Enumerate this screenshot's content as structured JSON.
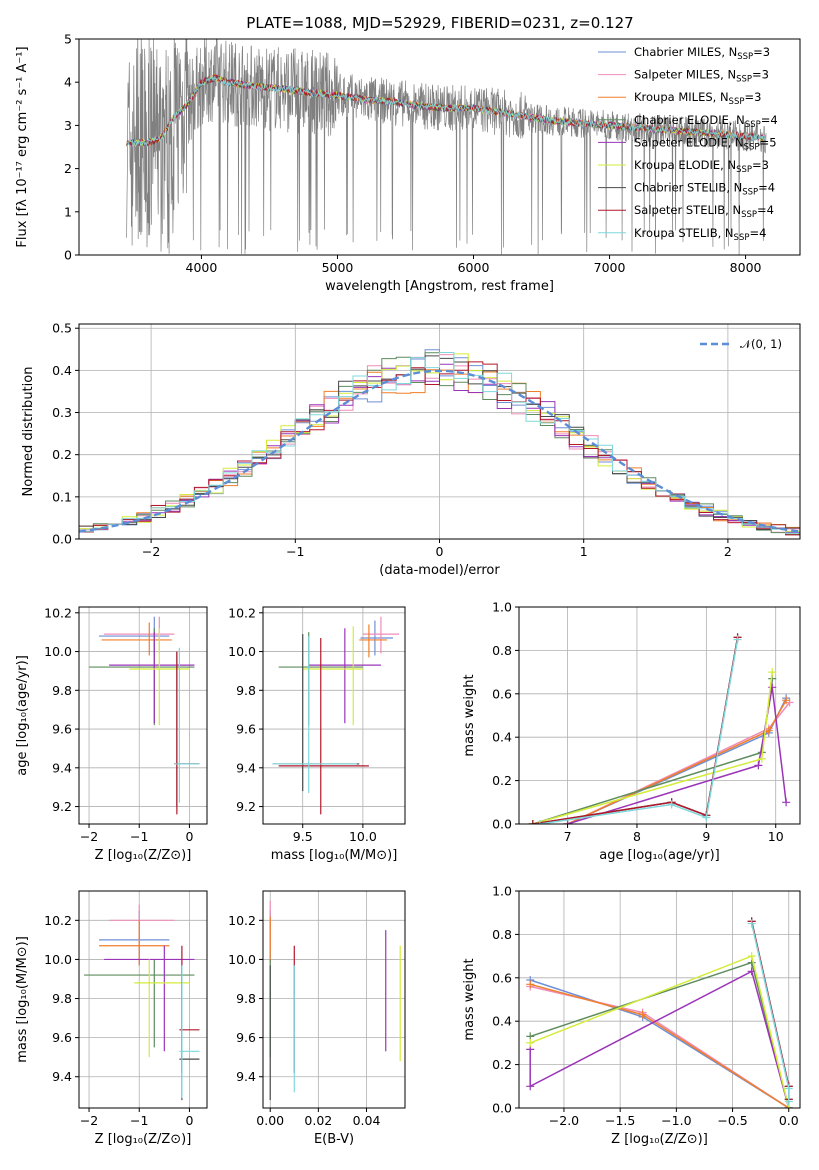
{
  "figure_title": "PLATE=1088, MJD=52929, FIBERID=0231, z=0.127",
  "colors": {
    "Chabrier MILES": "#6f8fd6",
    "Salpeter MILES": "#f08cb8",
    "Kroupa MILES": "#f07f2a",
    "Chabrier ELODIE": "#5e8c5e",
    "Salpeter ELODIE": "#9b35b8",
    "Kroupa ELODIE": "#d4ec3a",
    "Chabrier STELIB": "#4a4a4a",
    "Salpeter STELIB": "#b2182b",
    "Kroupa STELIB": "#7fd8dc",
    "data": "#808080",
    "normal_curve": "#5b8ed6"
  },
  "chart_data": [
    {
      "id": "spectrum",
      "type": "line",
      "title": "PLATE=1088, MJD=52929, FIBERID=0231, z=0.127",
      "xlabel": "wavelength [Angstrom, rest frame]",
      "ylabel": "Flux [fλ 10⁻¹⁷ erg cm⁻² s⁻¹ A⁻¹]",
      "xlim": [
        3100,
        8400
      ],
      "ylim": [
        0,
        5
      ],
      "xticks": [
        "4000",
        "5000",
        "6000",
        "7000",
        "8000"
      ],
      "yticks": [
        "0",
        "1",
        "2",
        "3",
        "4",
        "5"
      ],
      "grid": false,
      "legend_position": "top-right",
      "data_range": [
        3450,
        8150
      ],
      "continuum_x": [
        3450,
        3600,
        3700,
        3800,
        3900,
        4000,
        4100,
        4200,
        4400,
        4600,
        4800,
        5000,
        5200,
        5400,
        5600,
        5800,
        6000,
        6200,
        6400,
        6600,
        6800,
        7000,
        7200,
        7400,
        7600,
        7800,
        8000,
        8150
      ],
      "continuum_y": [
        2.6,
        2.6,
        2.7,
        3.2,
        3.5,
        4.0,
        4.1,
        4.0,
        3.9,
        3.85,
        3.75,
        3.7,
        3.6,
        3.55,
        3.45,
        3.4,
        3.4,
        3.3,
        3.2,
        3.1,
        3.05,
        3.0,
        2.95,
        2.9,
        2.85,
        2.8,
        2.75,
        2.7
      ],
      "legend": [
        {
          "label": "Chabrier MILES, N",
          "sub": "SSP",
          "eq": "=3"
        },
        {
          "label": "Salpeter MILES, N",
          "sub": "SSP",
          "eq": "=3"
        },
        {
          "label": "Kroupa MILES, N",
          "sub": "SSP",
          "eq": "=3"
        },
        {
          "label": "Chabrier ELODIE, N",
          "sub": "SSP",
          "eq": "=4"
        },
        {
          "label": "Salpeter ELODIE, N",
          "sub": "SSP",
          "eq": "=5"
        },
        {
          "label": "Kroupa ELODIE, N",
          "sub": "SSP",
          "eq": "=3"
        },
        {
          "label": "Chabrier STELIB, N",
          "sub": "SSP",
          "eq": "=4"
        },
        {
          "label": "Salpeter STELIB, N",
          "sub": "SSP",
          "eq": "=4"
        },
        {
          "label": "Kroupa STELIB, N",
          "sub": "SSP",
          "eq": "=4"
        }
      ]
    },
    {
      "id": "residuals",
      "type": "line",
      "xlabel": "(data-model)/error",
      "ylabel": "Normed distribution",
      "xlim": [
        -2.5,
        2.5
      ],
      "ylim": [
        0,
        0.51
      ],
      "xticks": [
        "−2",
        "−1",
        "0",
        "1",
        "2"
      ],
      "yticks": [
        "0.0",
        "0.1",
        "0.2",
        "0.3",
        "0.4",
        "0.5"
      ],
      "grid": true,
      "legend_position": "top-right",
      "legend_label": "𝒩(0, 1)",
      "bin_width": 0.1,
      "histogram_range": [
        -2.6,
        2.6
      ]
    },
    {
      "id": "age_vs_Z",
      "type": "scatter",
      "xlabel": "Z [log₁₀(Z/Z⊙)]",
      "ylabel": "age  [log₁₀(age/yr)]",
      "xlim": [
        -2.2,
        0.35
      ],
      "ylim": [
        9.11,
        10.23
      ],
      "xticks": [
        "−2",
        "−1",
        "0"
      ],
      "yticks": [
        "9.2",
        "9.4",
        "9.6",
        "9.8",
        "10.0",
        "10.2"
      ],
      "grid": true,
      "points": [
        {
          "model": "Chabrier MILES",
          "x": -0.7,
          "xlo": -1.8,
          "xhi": -0.4,
          "y": 10.08,
          "ylo": 9.98,
          "yhi": 10.18
        },
        {
          "model": "Salpeter MILES",
          "x": -0.6,
          "xlo": -1.7,
          "xhi": -0.3,
          "y": 10.09,
          "ylo": 9.99,
          "yhi": 10.18
        },
        {
          "model": "Kroupa MILES",
          "x": -0.8,
          "xlo": -1.75,
          "xhi": -0.35,
          "y": 10.06,
          "ylo": 9.98,
          "yhi": 10.15
        },
        {
          "model": "Chabrier ELODIE",
          "x": -0.7,
          "xlo": -2.0,
          "xhi": 0.1,
          "y": 9.92,
          "ylo": 9.62,
          "yhi": 10.12
        },
        {
          "model": "Salpeter ELODIE",
          "x": -0.7,
          "xlo": -1.6,
          "xhi": 0.1,
          "y": 9.93,
          "ylo": 9.63,
          "yhi": 10.1
        },
        {
          "model": "Kroupa ELODIE",
          "x": -0.6,
          "xlo": -1.2,
          "xhi": 0.0,
          "y": 9.91,
          "ylo": 9.62,
          "yhi": 10.12
        },
        {
          "model": "Chabrier STELIB",
          "x": -0.25,
          "xlo": -0.3,
          "xhi": 0.2,
          "y": 9.42,
          "ylo": 9.2,
          "yhi": 10.0
        },
        {
          "model": "Salpeter STELIB",
          "x": -0.25,
          "xlo": -0.3,
          "xhi": 0.2,
          "y": 9.42,
          "ylo": 9.16,
          "yhi": 10.0
        },
        {
          "model": "Kroupa STELIB",
          "x": -0.2,
          "xlo": -0.3,
          "xhi": 0.2,
          "y": 9.42,
          "ylo": 9.22,
          "yhi": 10.02
        }
      ]
    },
    {
      "id": "age_vs_mass",
      "type": "scatter",
      "xlabel": "mass [log₁₀(M/M⊙)]",
      "ylabel": "",
      "xlim": [
        9.17,
        10.35
      ],
      "ylim": [
        9.11,
        10.23
      ],
      "xticks": [
        "9.5",
        "10.0"
      ],
      "yticks": [
        "9.2",
        "9.4",
        "9.6",
        "9.8",
        "10.0",
        "10.2"
      ],
      "grid": true,
      "points": [
        {
          "model": "Chabrier MILES",
          "x": 10.1,
          "xlo": 9.98,
          "xhi": 10.25,
          "y": 10.07,
          "ylo": 9.98,
          "yhi": 10.16
        },
        {
          "model": "Salpeter MILES",
          "x": 10.15,
          "xlo": 10.0,
          "xhi": 10.3,
          "y": 10.09,
          "ylo": 9.99,
          "yhi": 10.18
        },
        {
          "model": "Kroupa MILES",
          "x": 10.05,
          "xlo": 9.97,
          "xhi": 10.2,
          "y": 10.06,
          "ylo": 9.97,
          "yhi": 10.14
        },
        {
          "model": "Chabrier ELODIE",
          "x": 9.55,
          "xlo": 9.3,
          "xhi": 10.0,
          "y": 9.92,
          "ylo": 9.62,
          "yhi": 10.1
        },
        {
          "model": "Salpeter ELODIE",
          "x": 9.85,
          "xlo": 9.55,
          "xhi": 10.15,
          "y": 9.93,
          "ylo": 9.63,
          "yhi": 10.12
        },
        {
          "model": "Kroupa ELODIE",
          "x": 9.92,
          "xlo": 9.5,
          "xhi": 10.0,
          "y": 9.91,
          "ylo": 9.62,
          "yhi": 10.13
        },
        {
          "model": "Chabrier STELIB",
          "x": 9.5,
          "xlo": 9.25,
          "xhi": 9.97,
          "y": 9.42,
          "ylo": 9.28,
          "yhi": 10.09
        },
        {
          "model": "Salpeter STELIB",
          "x": 9.65,
          "xlo": 9.3,
          "xhi": 10.05,
          "y": 9.41,
          "ylo": 9.16,
          "yhi": 10.07
        },
        {
          "model": "Kroupa STELIB",
          "x": 9.55,
          "xlo": 9.25,
          "xhi": 9.95,
          "y": 9.42,
          "ylo": 9.27,
          "yhi": 10.08
        }
      ]
    },
    {
      "id": "weight_vs_age",
      "type": "line",
      "xlabel": "age  [log₁₀(age/yr)]",
      "ylabel": "mass weight",
      "xlim": [
        6.3,
        10.35
      ],
      "ylim": [
        0,
        1
      ],
      "xticks": [
        "7",
        "8",
        "9",
        "10"
      ],
      "yticks": [
        "0.0",
        "0.2",
        "0.4",
        "0.6",
        "0.8",
        "1.0"
      ],
      "grid": true,
      "series": [
        {
          "model": "Chabrier MILES",
          "x": [
            7.0,
            9.9,
            10.15
          ],
          "y": [
            0.0,
            0.42,
            0.58
          ]
        },
        {
          "model": "Salpeter MILES",
          "x": [
            7.0,
            9.9,
            10.2
          ],
          "y": [
            0.0,
            0.44,
            0.56
          ]
        },
        {
          "model": "Kroupa MILES",
          "x": [
            7.0,
            9.9,
            10.15
          ],
          "y": [
            0.0,
            0.43,
            0.57
          ]
        },
        {
          "model": "Chabrier ELODIE",
          "x": [
            6.5,
            9.8,
            9.95
          ],
          "y": [
            0.0,
            0.33,
            0.67
          ]
        },
        {
          "model": "Salpeter ELODIE",
          "x": [
            7.0,
            9.75,
            9.95,
            10.15
          ],
          "y": [
            0.0,
            0.27,
            0.63,
            0.1
          ]
        },
        {
          "model": "Kroupa ELODIE",
          "x": [
            6.5,
            9.8,
            9.95
          ],
          "y": [
            0.0,
            0.3,
            0.7
          ]
        },
        {
          "model": "Chabrier STELIB",
          "x": [
            6.5,
            8.5,
            9.0,
            9.45
          ],
          "y": [
            0.0,
            0.1,
            0.04,
            0.86
          ]
        },
        {
          "model": "Salpeter STELIB",
          "x": [
            6.5,
            8.5,
            9.0,
            9.45
          ],
          "y": [
            0.0,
            0.1,
            0.04,
            0.86
          ]
        },
        {
          "model": "Kroupa STELIB",
          "x": [
            6.6,
            8.5,
            9.0,
            9.45
          ],
          "y": [
            0.0,
            0.09,
            0.03,
            0.85
          ]
        }
      ]
    },
    {
      "id": "mass_vs_Z",
      "type": "scatter",
      "xlabel": "Z [log₁₀(Z/Z⊙)]",
      "ylabel": "mass [log₁₀(M/M⊙)]",
      "xlim": [
        -2.2,
        0.35
      ],
      "ylim": [
        9.24,
        10.35
      ],
      "xticks": [
        "−2",
        "−1",
        "0"
      ],
      "yticks": [
        "9.4",
        "9.6",
        "9.8",
        "10.0",
        "10.2"
      ],
      "grid": true,
      "points": [
        {
          "model": "Chabrier MILES",
          "x": -1.0,
          "xlo": -1.8,
          "xhi": -0.4,
          "y": 10.1,
          "ylo": 9.97,
          "yhi": 10.25
        },
        {
          "model": "Salpeter MILES",
          "x": -1.0,
          "xlo": -1.6,
          "xhi": -0.3,
          "y": 10.2,
          "ylo": 10.05,
          "yhi": 10.28
        },
        {
          "model": "Kroupa MILES",
          "x": -1.0,
          "xlo": -1.8,
          "xhi": -0.4,
          "y": 10.07,
          "ylo": 9.97,
          "yhi": 10.2
        },
        {
          "model": "Chabrier ELODIE",
          "x": -0.7,
          "xlo": -2.1,
          "xhi": 0.1,
          "y": 9.92,
          "ylo": 9.55,
          "yhi": 10.0
        },
        {
          "model": "Salpeter ELODIE",
          "x": -0.5,
          "xlo": -1.7,
          "xhi": 0.1,
          "y": 10.0,
          "ylo": 9.53,
          "yhi": 10.07
        },
        {
          "model": "Kroupa ELODIE",
          "x": -0.8,
          "xlo": -1.1,
          "xhi": 0.0,
          "y": 9.88,
          "ylo": 9.5,
          "yhi": 10.0
        },
        {
          "model": "Chabrier STELIB",
          "x": -0.15,
          "xlo": -0.2,
          "xhi": 0.2,
          "y": 9.49,
          "ylo": 9.28,
          "yhi": 9.97
        },
        {
          "model": "Salpeter STELIB",
          "x": -0.15,
          "xlo": -0.2,
          "xhi": 0.2,
          "y": 9.64,
          "ylo": 9.42,
          "yhi": 10.07
        },
        {
          "model": "Kroupa STELIB",
          "x": -0.15,
          "xlo": -0.2,
          "xhi": 0.2,
          "y": 9.53,
          "ylo": 9.29,
          "yhi": 9.97
        }
      ]
    },
    {
      "id": "mass_vs_EBV",
      "type": "scatter",
      "xlabel": "E(B-V)",
      "ylabel": "",
      "xlim": [
        -0.003,
        0.056
      ],
      "ylim": [
        9.24,
        10.35
      ],
      "xticks": [
        "0.00",
        "0.02",
        "0.04"
      ],
      "yticks": [
        "9.4",
        "9.6",
        "9.8",
        "10.0",
        "10.2"
      ],
      "grid": true,
      "points": [
        {
          "model": "Chabrier MILES",
          "x": 0.0,
          "ylo": 9.98,
          "yhi": 10.25
        },
        {
          "model": "Salpeter MILES",
          "x": 0.0,
          "ylo": 10.05,
          "yhi": 10.3
        },
        {
          "model": "Kroupa MILES",
          "x": 0.0,
          "ylo": 9.98,
          "yhi": 10.22
        },
        {
          "model": "Chabrier ELODIE",
          "x": 0.0,
          "ylo": 9.5,
          "yhi": 10.0
        },
        {
          "model": "Salpeter ELODIE",
          "x": 0.048,
          "ylo": 9.53,
          "yhi": 10.15
        },
        {
          "model": "Kroupa ELODIE",
          "x": 0.054,
          "ylo": 9.48,
          "yhi": 10.07
        },
        {
          "model": "Chabrier STELIB",
          "x": 0.0,
          "ylo": 9.28,
          "yhi": 9.97
        },
        {
          "model": "Salpeter STELIB",
          "x": 0.01,
          "ylo": 9.42,
          "yhi": 10.07
        },
        {
          "model": "Kroupa STELIB",
          "x": 0.01,
          "ylo": 9.32,
          "yhi": 9.97
        }
      ]
    },
    {
      "id": "weight_vs_Z",
      "type": "line",
      "xlabel": "Z [log₁₀(Z/Z⊙)]",
      "ylabel": "mass weight",
      "xlim": [
        -2.4,
        0.1
      ],
      "ylim": [
        0,
        1
      ],
      "xticks": [
        "−2.0",
        "−1.5",
        "−1.0",
        "−0.5",
        "0.0"
      ],
      "yticks": [
        "0.0",
        "0.2",
        "0.4",
        "0.6",
        "0.8",
        "1.0"
      ],
      "grid": true,
      "series": [
        {
          "model": "Chabrier MILES",
          "x": [
            -2.3,
            -1.3,
            0.0
          ],
          "y": [
            0.59,
            0.42,
            0.0
          ]
        },
        {
          "model": "Salpeter MILES",
          "x": [
            -2.3,
            -1.3,
            0.0
          ],
          "y": [
            0.56,
            0.44,
            0.0
          ]
        },
        {
          "model": "Kroupa MILES",
          "x": [
            -2.3,
            -1.3,
            0.0
          ],
          "y": [
            0.57,
            0.43,
            0.0
          ]
        },
        {
          "model": "Chabrier ELODIE",
          "x": [
            -2.3,
            -0.33,
            0.0
          ],
          "y": [
            0.33,
            0.67,
            0.0
          ]
        },
        {
          "model": "Salpeter ELODIE",
          "x": [
            -2.3,
            -2.3,
            -0.33,
            0.0
          ],
          "y": [
            0.27,
            0.1,
            0.63,
            0.0
          ]
        },
        {
          "model": "Kroupa ELODIE",
          "x": [
            -2.3,
            -0.33,
            0.0
          ],
          "y": [
            0.3,
            0.7,
            0.0
          ]
        },
        {
          "model": "Chabrier STELIB",
          "x": [
            -0.33,
            0.0,
            0.0
          ],
          "y": [
            0.86,
            0.1,
            0.04
          ]
        },
        {
          "model": "Salpeter STELIB",
          "x": [
            -0.33,
            0.0,
            0.0
          ],
          "y": [
            0.86,
            0.1,
            0.04
          ]
        },
        {
          "model": "Kroupa STELIB",
          "x": [
            -0.33,
            0.0,
            0.0
          ],
          "y": [
            0.85,
            0.09,
            0.03
          ]
        }
      ]
    }
  ]
}
